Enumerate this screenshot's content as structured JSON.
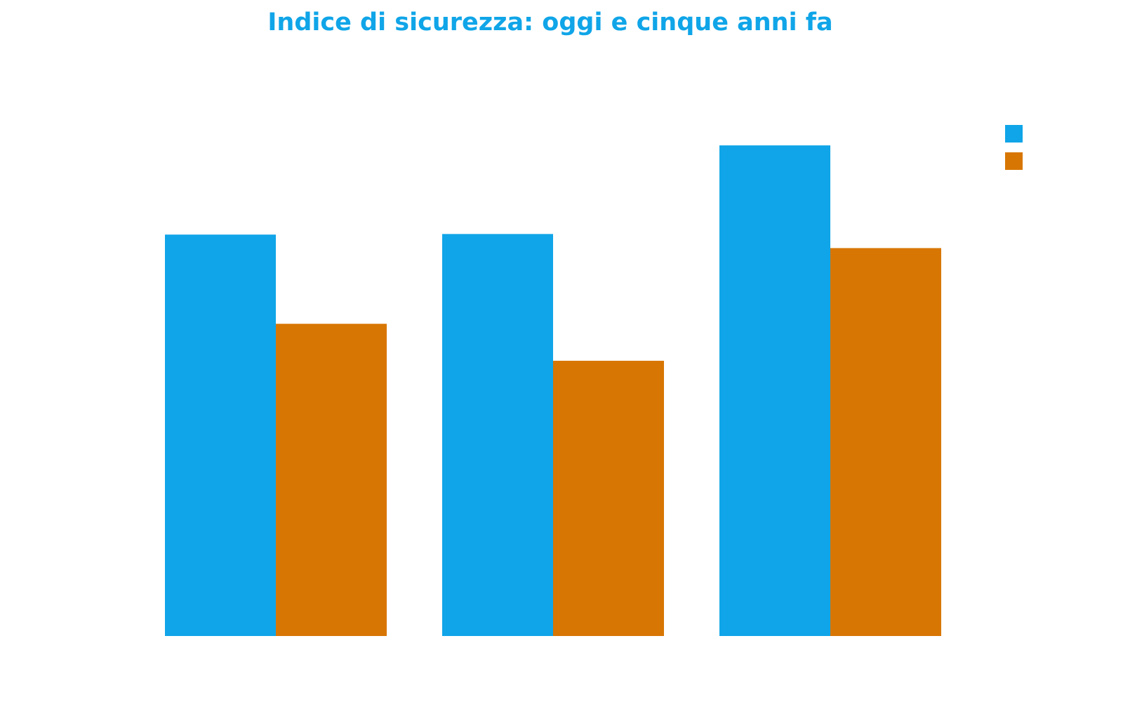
{
  "chart_data": {
    "type": "bar",
    "title": "Indice di sicurezza: oggi e cinque anni fa",
    "categories": [
      "",
      "",
      ""
    ],
    "series": [
      {
        "color": "#10a5e8",
        "values": [
          68.4,
          68.5,
          83.6
        ]
      },
      {
        "color": "#d87603",
        "values": [
          53.2,
          46.9,
          66.1
        ]
      }
    ],
    "ylim": [
      0,
      100
    ],
    "grid": false,
    "legend_position": "top-right",
    "colors": {
      "title": "#10a5e8",
      "background": "#ffffff"
    }
  }
}
